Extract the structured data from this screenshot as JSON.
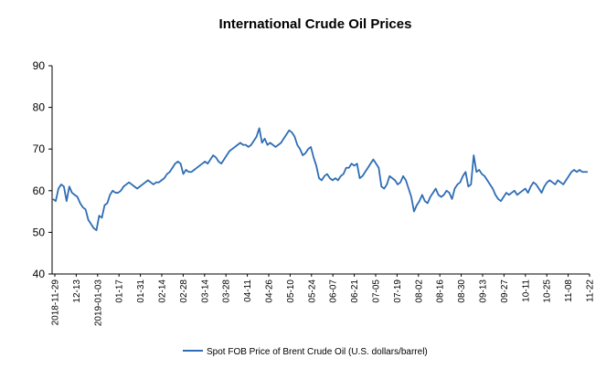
{
  "chart_data": {
    "type": "line",
    "title": "International Crude Oil Prices",
    "ylim": [
      40,
      90
    ],
    "yticks": [
      40,
      50,
      60,
      70,
      80,
      90
    ],
    "grid": false,
    "legend_position": "bottom",
    "line_color": "#2E6DB4",
    "x_tick_labels": [
      "2018-11-29",
      "12-13",
      "2019-01-03",
      "01-17",
      "01-31",
      "02-14",
      "02-28",
      "03-14",
      "03-28",
      "04-11",
      "04-26",
      "05-10",
      "05-24",
      "06-07",
      "06-21",
      "07-05",
      "07-19",
      "08-02",
      "08-16",
      "08-30",
      "09-13",
      "09-27",
      "10-11",
      "10-25",
      "11-08",
      "11-22"
    ],
    "series": [
      {
        "name": "Spot FOB Price of Brent Crude Oil (U.S. dollars/barrel)",
        "values": [
          58.0,
          57.5,
          60.5,
          61.5,
          61.0,
          57.5,
          61.0,
          59.5,
          59.0,
          58.5,
          57.0,
          56.0,
          55.5,
          53.0,
          52.0,
          51.0,
          50.5,
          54.0,
          53.5,
          56.5,
          57.0,
          59.0,
          60.0,
          59.5,
          59.5,
          60.0,
          61.0,
          61.5,
          62.0,
          61.5,
          61.0,
          60.5,
          61.0,
          61.5,
          62.0,
          62.5,
          62.0,
          61.5,
          62.0,
          62.0,
          62.5,
          63.0,
          64.0,
          64.5,
          65.5,
          66.5,
          67.0,
          66.5,
          64.0,
          65.0,
          64.5,
          64.5,
          65.0,
          65.5,
          66.0,
          66.5,
          67.0,
          66.5,
          67.5,
          68.5,
          68.0,
          67.0,
          66.5,
          67.5,
          68.5,
          69.5,
          70.0,
          70.5,
          71.0,
          71.5,
          71.0,
          71.0,
          70.5,
          71.0,
          72.0,
          73.0,
          75.0,
          71.5,
          72.5,
          71.0,
          71.5,
          71.0,
          70.5,
          71.0,
          71.5,
          72.5,
          73.5,
          74.5,
          74.0,
          73.0,
          71.0,
          70.0,
          68.5,
          69.0,
          70.0,
          70.5,
          68.0,
          66.0,
          63.0,
          62.5,
          63.5,
          64.0,
          63.0,
          62.5,
          63.0,
          62.5,
          63.5,
          64.0,
          65.5,
          65.5,
          66.5,
          66.0,
          66.5,
          63.0,
          63.5,
          64.5,
          65.5,
          66.5,
          67.5,
          66.5,
          65.5,
          61.0,
          60.5,
          61.5,
          63.5,
          63.0,
          62.5,
          61.5,
          62.0,
          63.5,
          62.5,
          60.5,
          58.5,
          55.0,
          56.5,
          57.5,
          59.0,
          57.5,
          57.0,
          58.5,
          59.5,
          60.5,
          59.0,
          58.5,
          59.0,
          60.0,
          59.5,
          58.0,
          60.5,
          61.5,
          62.0,
          63.5,
          64.5,
          61.0,
          61.5,
          68.5,
          64.5,
          65.0,
          64.0,
          63.5,
          62.5,
          61.5,
          60.5,
          59.0,
          58.0,
          57.5,
          58.5,
          59.5,
          59.0,
          59.5,
          60.0,
          59.0,
          59.5,
          60.0,
          60.5,
          59.5,
          61.0,
          62.0,
          61.5,
          60.5,
          59.5,
          61.0,
          62.0,
          62.5,
          62.0,
          61.5,
          62.5,
          62.0,
          61.5,
          62.5,
          63.5,
          64.5,
          65.0,
          64.5,
          65.0,
          64.5,
          64.5,
          64.5
        ]
      }
    ]
  }
}
